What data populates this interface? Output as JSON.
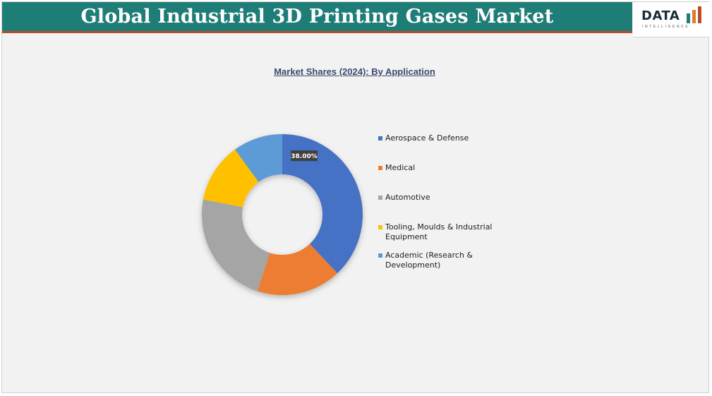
{
  "header": {
    "title": "Global Industrial 3D Printing Gases Market"
  },
  "logo": {
    "text": "DATA",
    "subtext": "INTELLIGENCE",
    "bar_colors": [
      "#1f7d78",
      "#e07b2e",
      "#b84c2a"
    ]
  },
  "chart_data": {
    "type": "pie",
    "donut": true,
    "title": "Market Shares (2024): By Application",
    "categories": [
      "Aerospace & Defense",
      "Medical",
      "Automotive",
      "Tooling, Moulds & Industrial Equipment",
      "Academic (Research & Development)"
    ],
    "values": [
      38.0,
      17.0,
      23.0,
      12.0,
      10.0
    ],
    "colors": [
      "#4472c4",
      "#ed7d31",
      "#a5a5a5",
      "#ffc000",
      "#5b9bd5"
    ],
    "data_labels": [
      "38.00%",
      "",
      "",
      "",
      ""
    ],
    "legend_position": "right"
  }
}
